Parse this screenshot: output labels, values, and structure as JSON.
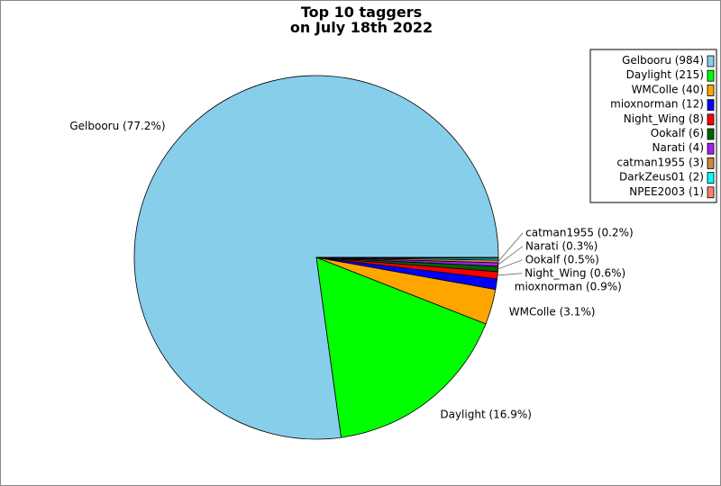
{
  "chart_data": {
    "type": "pie",
    "title": "Top 10 taggers\non July 18th 2022",
    "title_lines": [
      "Top 10 taggers",
      "on July 18th 2022"
    ],
    "start_angle_deg": 0,
    "direction": "counterclockwise",
    "legend_placement": "top-right",
    "slices": [
      {
        "name": "Gelbooru",
        "value": 984,
        "color": "#87CEEB",
        "legend": "Gelbooru (984)",
        "label": "Gelbooru (77.2%)"
      },
      {
        "name": "Daylight",
        "value": 215,
        "color": "#00FF00",
        "legend": "Daylight (215)",
        "label": "Daylight (16.9%)"
      },
      {
        "name": "WMColle",
        "value": 40,
        "color": "#FFA500",
        "legend": "WMColle (40)",
        "label": "WMColle (3.1%)"
      },
      {
        "name": "mioxnorman",
        "value": 12,
        "color": "#0000FF",
        "legend": "mioxnorman (12)",
        "label": "mioxnorman (0.9%)"
      },
      {
        "name": "Night_Wing",
        "value": 8,
        "color": "#FF0000",
        "legend": "Night_Wing (8)",
        "label": "Night_Wing (0.6%)"
      },
      {
        "name": "Ookalf",
        "value": 6,
        "color": "#006400",
        "legend": "Ookalf (6)",
        "label": "Ookalf (0.5%)"
      },
      {
        "name": "Narati",
        "value": 4,
        "color": "#A020F0",
        "legend": "Narati (4)",
        "label": "Narati (0.3%)"
      },
      {
        "name": "catman1955",
        "value": 3,
        "color": "#CD853F",
        "legend": "catman1955 (3)",
        "label": "catman1955 (0.2%)"
      },
      {
        "name": "DarkZeus01",
        "value": 2,
        "color": "#00FFFF",
        "legend": "DarkZeus01 (2)",
        "label": ""
      },
      {
        "name": "NPEE2003",
        "value": 1,
        "color": "#FA8072",
        "legend": "NPEE2003 (1)",
        "label": ""
      }
    ]
  }
}
